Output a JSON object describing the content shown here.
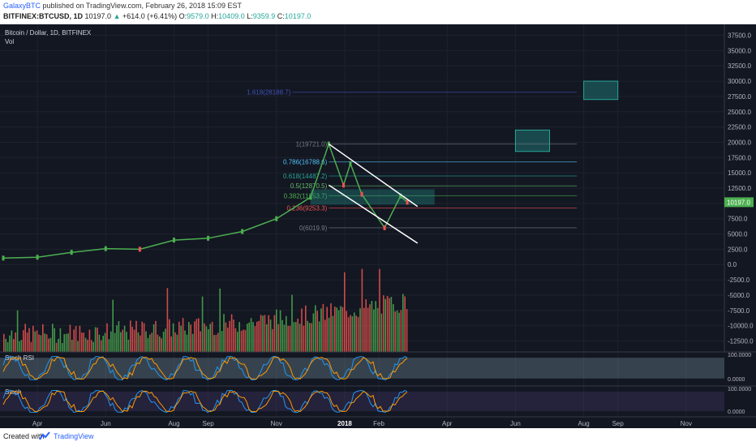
{
  "header": {
    "author": "GalaxyBTC",
    "published": "published on TradingView.com, February 26, 2018 15:09 EST",
    "symbol": "BITFINEX:BTCUSD, 1D",
    "last": "10197.0",
    "change_arrow": "▲",
    "change": "+614.0 (+6.41%)",
    "o_label": "O:",
    "o_value": "9579.0",
    "h_label": "H:",
    "h_value": "10409.0",
    "l_label": "L:",
    "l_value": "9359.9",
    "c_label": "C:",
    "c_value": "10197.0"
  },
  "legend": {
    "title": "Bitcoin / Dollar, 1D, BITFINEX",
    "vol": "Vol"
  },
  "colors": {
    "background": "#131722",
    "up": "#4caf50",
    "down": "#ef5350",
    "channel": "#ffffff",
    "box": "#26a69a",
    "grid": "#1e222d"
  },
  "price_axis_labels": [
    "37500.0",
    "35000.0",
    "32500.0",
    "30000.0",
    "27500.0",
    "25000.0",
    "22500.0",
    "20000.0",
    "17500.0",
    "15000.0",
    "12500.0",
    "10000.0",
    "7500.0",
    "5000.0",
    "2500.0",
    "0.0",
    "-2500.0",
    "-5000.0",
    "-7500.0",
    "-10000.0",
    "-12500.0"
  ],
  "current_price_tag": "10197.0",
  "time_axis_labels": [
    "Apr",
    "Jun",
    "Aug",
    "Sep",
    "Nov",
    "2018",
    "Feb",
    "Apr",
    "Jun",
    "Aug",
    "Sep",
    "Nov"
  ],
  "indicators": {
    "stoch_rsi": {
      "label": "Stoch RSI",
      "upper": "100.0000",
      "lower": "0.0000"
    },
    "stoch": {
      "label": "Stoch",
      "upper": "100.0000",
      "lower": "0.0000"
    }
  },
  "chart_data": {
    "type": "line",
    "title": "Bitcoin / Dollar, 1D, BITFINEX",
    "xlabel": "",
    "ylabel": "",
    "ylim": [
      -13500,
      38500
    ],
    "price_series": {
      "name": "BTCUSD",
      "x": [
        "2017-03",
        "2017-04",
        "2017-05",
        "2017-06",
        "2017-07",
        "2017-08",
        "2017-09",
        "2017-10",
        "2017-11",
        "2017-12-01",
        "2017-12-17",
        "2017-12-30",
        "2018-01-06",
        "2018-01-16",
        "2018-02-06",
        "2018-02-20",
        "2018-02-26"
      ],
      "y": [
        1050,
        1200,
        2000,
        2600,
        2500,
        4000,
        4300,
        5400,
        7500,
        11000,
        19721,
        13000,
        16500,
        11500,
        6019,
        11200,
        10197
      ]
    },
    "fibonacci": [
      {
        "level": "1",
        "value": 19721.0
      },
      {
        "level": "0.786",
        "value": 16788.6
      },
      {
        "level": "0.618",
        "value": 14487.2
      },
      {
        "level": "0.5",
        "value": 12870.5
      },
      {
        "level": "0.382",
        "value": 11253.7
      },
      {
        "level": "0.236",
        "value": 9253.3
      },
      {
        "level": "0",
        "value": 6019.9
      },
      {
        "level": "1.618",
        "value": 28188.7
      }
    ],
    "fib_text": [
      "1(19721.0)",
      "0.786(16788.6)",
      "0.618(14487.2)",
      "0.5(12870.5)",
      "0.382(11253.7)",
      "0.236(9253.3)",
      "0(6019.9)",
      "1.618(28188.7)"
    ],
    "target_boxes": [
      {
        "from": "2018-06",
        "to": "2018-07",
        "low": 18500,
        "high": 22000
      },
      {
        "from": "2018-08",
        "to": "2018-09",
        "low": 27000,
        "high": 30000
      }
    ],
    "channel": {
      "upper": [
        {
          "x": "2017-12-17",
          "y": 19721
        },
        {
          "x": "2018-03-05",
          "y": 9500
        }
      ],
      "lower": [
        {
          "x": "2017-12-17",
          "y": 13000
        },
        {
          "x": "2018-03-05",
          "y": 3500
        }
      ]
    },
    "grid": true
  }
}
